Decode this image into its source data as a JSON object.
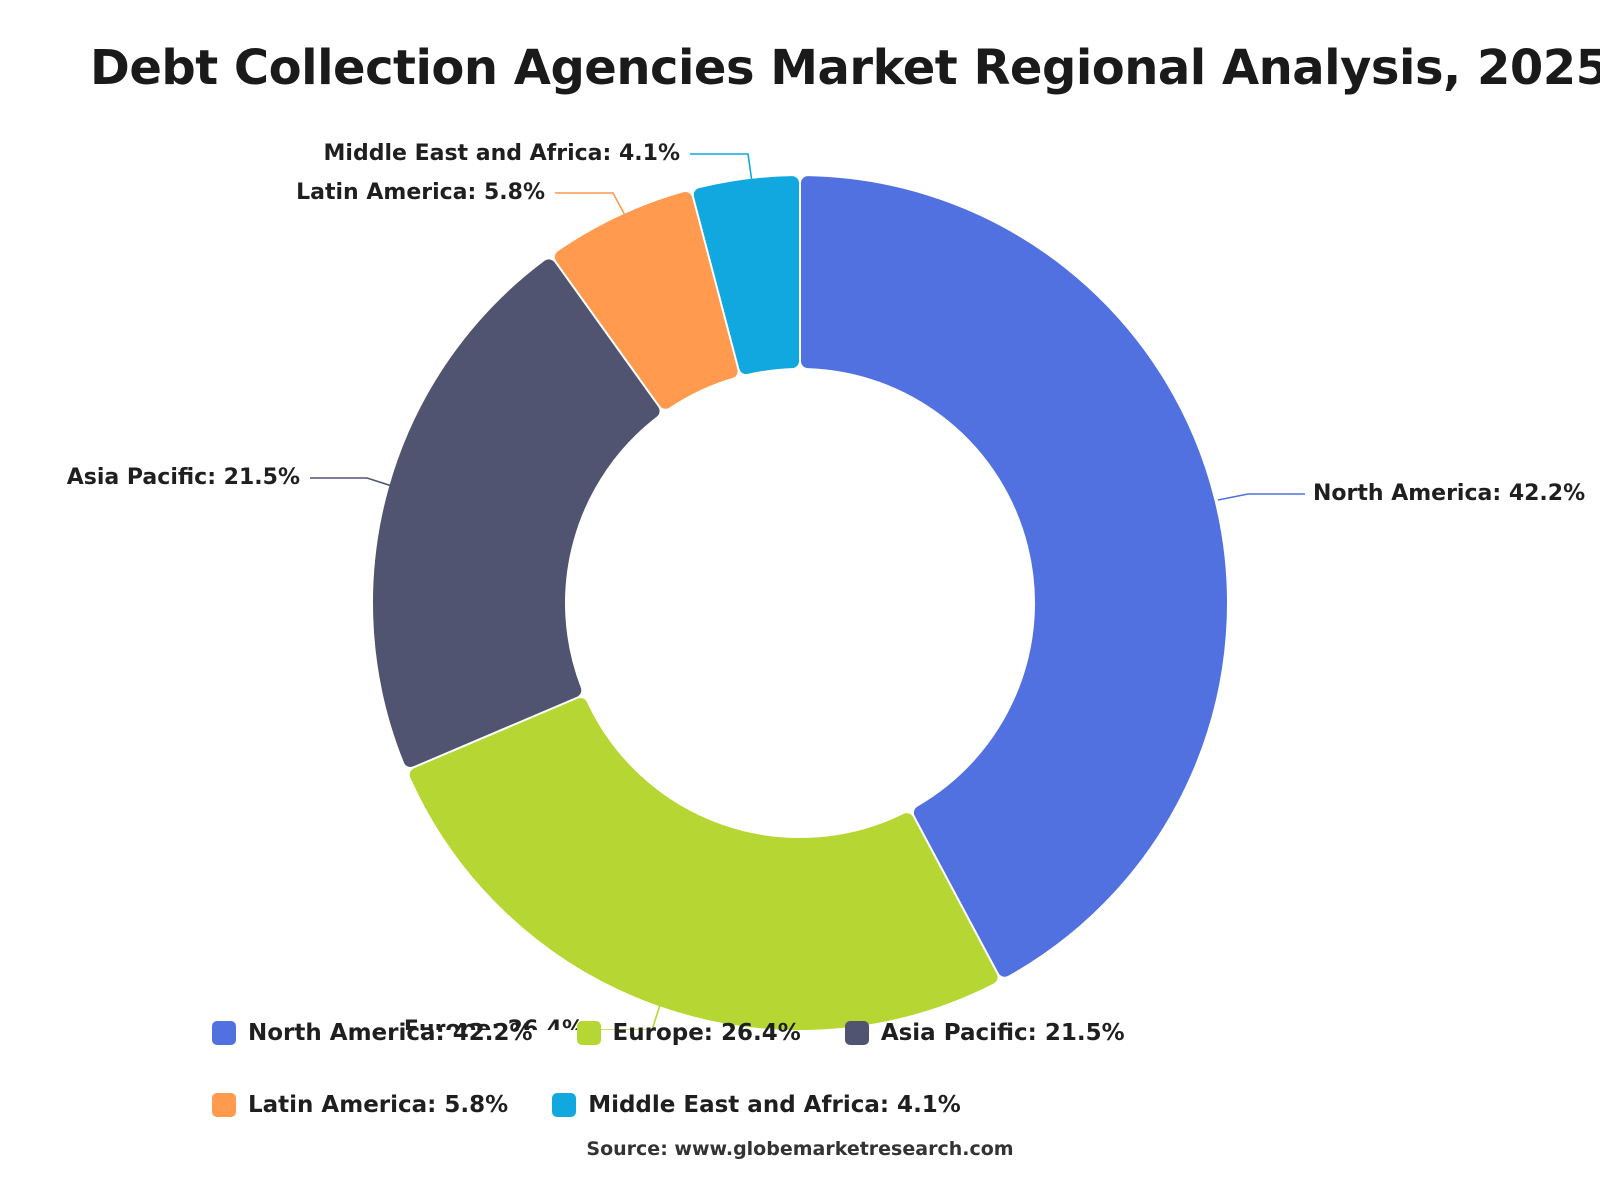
{
  "title": "Debt Collection Agencies Market Regional Analysis, 2025",
  "source": "Source: www.globemarketresearch.com",
  "chart_data": {
    "type": "pie",
    "variant": "donut",
    "title": "Debt Collection Agencies Market Regional Analysis, 2025",
    "unit": "%",
    "legend_position": "bottom",
    "categories": [
      "North America",
      "Europe",
      "Asia Pacific",
      "Latin America",
      "Middle East and Africa"
    ],
    "values": [
      42.2,
      26.4,
      21.5,
      5.8,
      4.1
    ],
    "colors": [
      "#5171e0",
      "#b6d733",
      "#515470",
      "#ff9a4e",
      "#11a8e0"
    ],
    "labels": [
      "North America: 42.2%",
      "Europe: 26.4%",
      "Asia Pacific: 21.5%",
      "Latin America: 5.8%",
      "Middle East and Africa: 4.1%"
    ]
  }
}
